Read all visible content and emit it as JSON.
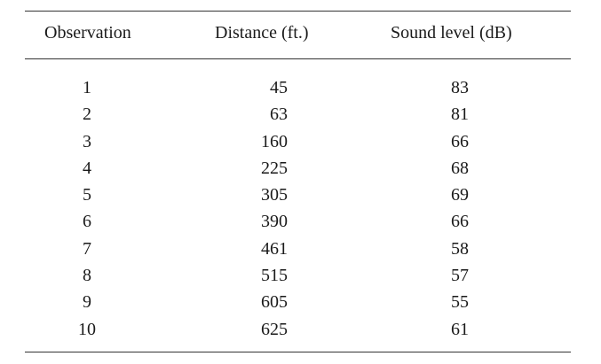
{
  "table": {
    "headers": {
      "observation": "Observation",
      "distance": "Distance (ft.)",
      "sound_level": "Sound level (dB)"
    },
    "rows": [
      {
        "observation": "1",
        "distance": "45",
        "sound_level": "83"
      },
      {
        "observation": "2",
        "distance": "63",
        "sound_level": "81"
      },
      {
        "observation": "3",
        "distance": "160",
        "sound_level": "66"
      },
      {
        "observation": "4",
        "distance": "225",
        "sound_level": "68"
      },
      {
        "observation": "5",
        "distance": "305",
        "sound_level": "69"
      },
      {
        "observation": "6",
        "distance": "390",
        "sound_level": "66"
      },
      {
        "observation": "7",
        "distance": "461",
        "sound_level": "58"
      },
      {
        "observation": "8",
        "distance": "515",
        "sound_level": "57"
      },
      {
        "observation": "9",
        "distance": "605",
        "sound_level": "55"
      },
      {
        "observation": "10",
        "distance": "625",
        "sound_level": "61"
      }
    ]
  }
}
